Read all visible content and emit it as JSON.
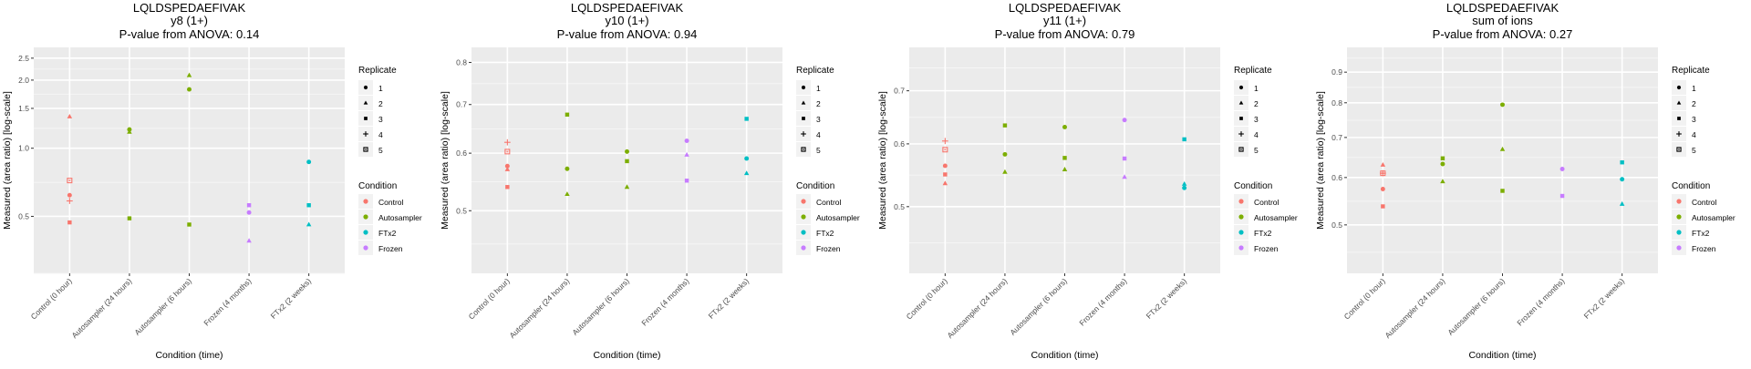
{
  "chart_data": [
    {
      "type": "scatter",
      "title": "LQLDSPEDAEFIVAK",
      "subtitle": "y8 (1+)",
      "pvalue_label": "P-value from ANOVA: 0.14",
      "xlabel": "Condition (time)",
      "ylabel": "Measured (area ratio) [log-scale]",
      "yscale": "log",
      "ylim": [
        0.28,
        2.79
      ],
      "yticks": [
        0.5,
        1.0,
        1.5,
        2.0,
        2.5
      ],
      "ytick_labels": [
        "0.5",
        "1.0",
        "1.5",
        "2.0",
        "2.5"
      ],
      "yminor": [
        0.28,
        0.707,
        1.225,
        1.732,
        2.236
      ],
      "categories": [
        "Control (0 hour)",
        "Autosampler (24 hours)",
        "Autosampler (6 hours)",
        "Frozen (4 months)",
        "FTx2 (2 weeks)"
      ],
      "grid": true,
      "points": [
        {
          "category": 0,
          "condition": "Control",
          "replicate": 2,
          "value": 1.38
        },
        {
          "category": 0,
          "condition": "Control",
          "replicate": 5,
          "value": 0.72
        },
        {
          "category": 0,
          "condition": "Control",
          "replicate": 1,
          "value": 0.62
        },
        {
          "category": 0,
          "condition": "Control",
          "replicate": 4,
          "value": 0.585
        },
        {
          "category": 0,
          "condition": "Control",
          "replicate": 3,
          "value": 0.47
        },
        {
          "category": 1,
          "condition": "Autosampler",
          "replicate": 1,
          "value": 1.21
        },
        {
          "category": 1,
          "condition": "Autosampler",
          "replicate": 2,
          "value": 1.18
        },
        {
          "category": 1,
          "condition": "Autosampler",
          "replicate": 3,
          "value": 0.49
        },
        {
          "category": 2,
          "condition": "Autosampler",
          "replicate": 2,
          "value": 2.1
        },
        {
          "category": 2,
          "condition": "Autosampler",
          "replicate": 1,
          "value": 1.82
        },
        {
          "category": 2,
          "condition": "Autosampler",
          "replicate": 3,
          "value": 0.46
        },
        {
          "category": 3,
          "condition": "Frozen",
          "replicate": 3,
          "value": 0.56
        },
        {
          "category": 3,
          "condition": "Frozen",
          "replicate": 1,
          "value": 0.52
        },
        {
          "category": 3,
          "condition": "Frozen",
          "replicate": 2,
          "value": 0.39
        },
        {
          "category": 4,
          "condition": "FTx2",
          "replicate": 1,
          "value": 0.87
        },
        {
          "category": 4,
          "condition": "FTx2",
          "replicate": 3,
          "value": 0.56
        },
        {
          "category": 4,
          "condition": "FTx2",
          "replicate": 2,
          "value": 0.46
        }
      ]
    },
    {
      "type": "scatter",
      "title": "LQLDSPEDAEFIVAK",
      "subtitle": "y10 (1+)",
      "pvalue_label": "P-value from ANOVA: 0.94",
      "xlabel": "Condition (time)",
      "ylabel": "Measured (area ratio) [log-scale]",
      "yscale": "log",
      "ylim": [
        0.41,
        0.839
      ],
      "yticks": [
        0.5,
        0.6,
        0.7,
        0.8
      ],
      "ytick_labels": [
        "0.5",
        "0.6",
        "0.7",
        "0.8"
      ],
      "yminor": [
        0.45,
        0.548,
        0.648,
        0.748
      ],
      "categories": [
        "Control (0 hour)",
        "Autosampler (24 hours)",
        "Autosampler (6 hours)",
        "Frozen (4 months)",
        "FTx2 (2 weeks)"
      ],
      "grid": true,
      "points": [
        {
          "category": 0,
          "condition": "Control",
          "replicate": 4,
          "value": 0.621
        },
        {
          "category": 0,
          "condition": "Control",
          "replicate": 5,
          "value": 0.603
        },
        {
          "category": 0,
          "condition": "Control",
          "replicate": 1,
          "value": 0.576
        },
        {
          "category": 0,
          "condition": "Control",
          "replicate": 2,
          "value": 0.57
        },
        {
          "category": 0,
          "condition": "Control",
          "replicate": 3,
          "value": 0.539
        },
        {
          "category": 1,
          "condition": "Autosampler",
          "replicate": 3,
          "value": 0.678
        },
        {
          "category": 1,
          "condition": "Autosampler",
          "replicate": 1,
          "value": 0.571
        },
        {
          "category": 1,
          "condition": "Autosampler",
          "replicate": 2,
          "value": 0.527
        },
        {
          "category": 2,
          "condition": "Autosampler",
          "replicate": 1,
          "value": 0.603
        },
        {
          "category": 2,
          "condition": "Autosampler",
          "replicate": 3,
          "value": 0.585
        },
        {
          "category": 2,
          "condition": "Autosampler",
          "replicate": 2,
          "value": 0.539
        },
        {
          "category": 3,
          "condition": "Frozen",
          "replicate": 1,
          "value": 0.624
        },
        {
          "category": 3,
          "condition": "Frozen",
          "replicate": 2,
          "value": 0.597
        },
        {
          "category": 3,
          "condition": "Frozen",
          "replicate": 3,
          "value": 0.55
        },
        {
          "category": 4,
          "condition": "FTx2",
          "replicate": 3,
          "value": 0.669
        },
        {
          "category": 4,
          "condition": "FTx2",
          "replicate": 1,
          "value": 0.59
        },
        {
          "category": 4,
          "condition": "FTx2",
          "replicate": 2,
          "value": 0.563
        }
      ]
    },
    {
      "type": "scatter",
      "title": "LQLDSPEDAEFIVAK",
      "subtitle": "y11 (1+)",
      "pvalue_label": "P-value from ANOVA: 0.79",
      "xlabel": "Condition (time)",
      "ylabel": "Measured (area ratio) [log-scale]",
      "yscale": "log",
      "ylim": [
        0.412,
        0.794
      ],
      "yticks": [
        0.5,
        0.6,
        0.7
      ],
      "ytick_labels": [
        "0.5",
        "0.6",
        "0.7"
      ],
      "yminor": [
        0.45,
        0.548,
        0.648,
        0.748
      ],
      "categories": [
        "Control (0 hour)",
        "Autosampler (24 hours)",
        "Autosampler (6 hours)",
        "Frozen (4 months)",
        "FTx2 (2 weeks)"
      ],
      "grid": true,
      "points": [
        {
          "category": 0,
          "condition": "Control",
          "replicate": 4,
          "value": 0.605
        },
        {
          "category": 0,
          "condition": "Control",
          "replicate": 5,
          "value": 0.59
        },
        {
          "category": 0,
          "condition": "Control",
          "replicate": 1,
          "value": 0.563
        },
        {
          "category": 0,
          "condition": "Control",
          "replicate": 3,
          "value": 0.549
        },
        {
          "category": 0,
          "condition": "Control",
          "replicate": 2,
          "value": 0.535
        },
        {
          "category": 1,
          "condition": "Autosampler",
          "replicate": 3,
          "value": 0.633
        },
        {
          "category": 1,
          "condition": "Autosampler",
          "replicate": 1,
          "value": 0.582
        },
        {
          "category": 1,
          "condition": "Autosampler",
          "replicate": 2,
          "value": 0.553
        },
        {
          "category": 2,
          "condition": "Autosampler",
          "replicate": 1,
          "value": 0.63
        },
        {
          "category": 2,
          "condition": "Autosampler",
          "replicate": 3,
          "value": 0.576
        },
        {
          "category": 2,
          "condition": "Autosampler",
          "replicate": 2,
          "value": 0.557
        },
        {
          "category": 3,
          "condition": "Frozen",
          "replicate": 1,
          "value": 0.643
        },
        {
          "category": 3,
          "condition": "Frozen",
          "replicate": 3,
          "value": 0.575
        },
        {
          "category": 3,
          "condition": "Frozen",
          "replicate": 2,
          "value": 0.545
        },
        {
          "category": 4,
          "condition": "FTx2",
          "replicate": 3,
          "value": 0.608
        },
        {
          "category": 4,
          "condition": "FTx2",
          "replicate": 2,
          "value": 0.534
        },
        {
          "category": 4,
          "condition": "FTx2",
          "replicate": 1,
          "value": 0.528
        }
      ]
    },
    {
      "type": "scatter",
      "title": "LQLDSPEDAEFIVAK",
      "subtitle": "sum of ions",
      "pvalue_label": "P-value from ANOVA: 0.27",
      "xlabel": "Condition (time)",
      "ylabel": "Measured (area ratio) [log-scale]",
      "yscale": "log",
      "ylim": [
        0.415,
        0.99
      ],
      "yticks": [
        0.5,
        0.6,
        0.7,
        0.8,
        0.9
      ],
      "ytick_labels": [
        "0.5",
        "0.6",
        "0.7",
        "0.8",
        "0.9"
      ],
      "yminor": [
        0.45,
        0.548,
        0.648,
        0.748,
        0.849,
        0.95
      ],
      "categories": [
        "Control (0 hour)",
        "Autosampler (24 hours)",
        "Autosampler (6 hours)",
        "Frozen (4 months)",
        "FTx2 (2 weeks)"
      ],
      "grid": true,
      "points": [
        {
          "category": 0,
          "condition": "Control",
          "replicate": 2,
          "value": 0.63
        },
        {
          "category": 0,
          "condition": "Control",
          "replicate": 5,
          "value": 0.61
        },
        {
          "category": 0,
          "condition": "Control",
          "replicate": 4,
          "value": 0.61
        },
        {
          "category": 0,
          "condition": "Control",
          "replicate": 1,
          "value": 0.574
        },
        {
          "category": 0,
          "condition": "Control",
          "replicate": 3,
          "value": 0.537
        },
        {
          "category": 1,
          "condition": "Autosampler",
          "replicate": 3,
          "value": 0.646
        },
        {
          "category": 1,
          "condition": "Autosampler",
          "replicate": 1,
          "value": 0.632
        },
        {
          "category": 1,
          "condition": "Autosampler",
          "replicate": 2,
          "value": 0.591
        },
        {
          "category": 2,
          "condition": "Autosampler",
          "replicate": 1,
          "value": 0.794
        },
        {
          "category": 2,
          "condition": "Autosampler",
          "replicate": 2,
          "value": 0.669
        },
        {
          "category": 2,
          "condition": "Autosampler",
          "replicate": 3,
          "value": 0.57
        },
        {
          "category": 3,
          "condition": "Frozen",
          "replicate": 1,
          "value": 0.62
        },
        {
          "category": 3,
          "condition": "Frozen",
          "replicate": 3,
          "value": 0.559
        },
        {
          "category": 4,
          "condition": "FTx2",
          "replicate": 3,
          "value": 0.636
        },
        {
          "category": 4,
          "condition": "FTx2",
          "replicate": 1,
          "value": 0.596
        },
        {
          "category": 4,
          "condition": "FTx2",
          "replicate": 2,
          "value": 0.542
        }
      ]
    }
  ],
  "legend": {
    "placement": "right",
    "replicate_title": "Replicate",
    "replicates": [
      {
        "label": "1",
        "shape": "circle"
      },
      {
        "label": "2",
        "shape": "triangle"
      },
      {
        "label": "3",
        "shape": "square"
      },
      {
        "label": "4",
        "shape": "plus"
      },
      {
        "label": "5",
        "shape": "boxed-square"
      }
    ],
    "condition_title": "Condition",
    "conditions": [
      {
        "label": "Control",
        "color": "#F8766D"
      },
      {
        "label": "Autosampler",
        "color": "#7CAE00"
      },
      {
        "label": "FTx2",
        "color": "#00BFC4"
      },
      {
        "label": "Frozen",
        "color": "#C77CFF"
      }
    ]
  },
  "colors": {
    "panel_background": "#EBEBEB",
    "grid_major": "#FFFFFF",
    "grid_minor": "#F5F5F5",
    "axis_text": "#4D4D4D",
    "title_text": "#000000"
  }
}
